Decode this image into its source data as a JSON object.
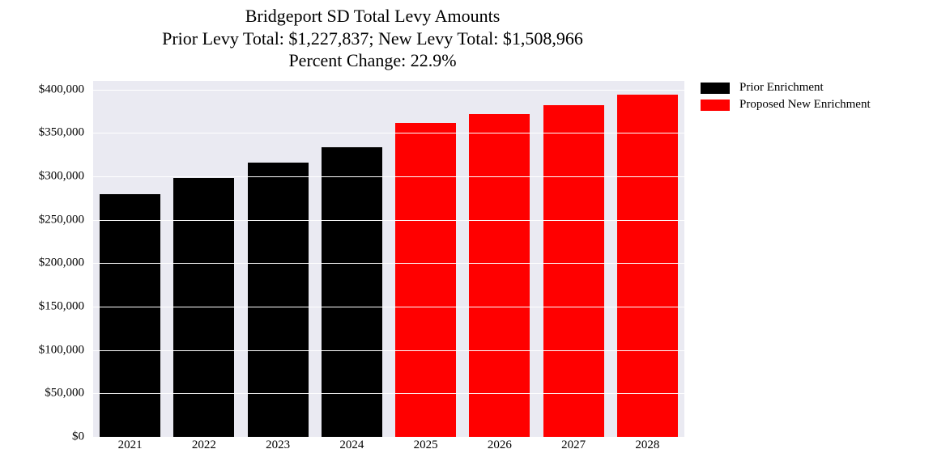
{
  "chart": {
    "type": "bar",
    "title_line1": "Bridgeport SD Total Levy Amounts",
    "title_line2": "Prior Levy Total:  $1,227,837; New Levy Total: $1,508,966",
    "title_line3": "Percent Change: 22.9%",
    "title_fontsize": 22,
    "title_color": "#000000",
    "background_color": "#ffffff",
    "plot_background_color": "#eaeaf2",
    "grid_color": "#ffffff",
    "categories": [
      "2021",
      "2022",
      "2023",
      "2024",
      "2025",
      "2026",
      "2027",
      "2028"
    ],
    "values": [
      280000,
      298000,
      316000,
      334000,
      362000,
      372000,
      382000,
      394000
    ],
    "bar_colors": [
      "#000000",
      "#000000",
      "#000000",
      "#000000",
      "#ff0000",
      "#ff0000",
      "#ff0000",
      "#ff0000"
    ],
    "ylim": [
      0,
      410000
    ],
    "ytick_step": 50000,
    "ytick_labels": [
      "$0",
      "$50,000",
      "$100,000",
      "$150,000",
      "$200,000",
      "$250,000",
      "$300,000",
      "$350,000",
      "$400,000"
    ],
    "axis_tick_fontsize": 15,
    "bar_width": 0.82,
    "legend": {
      "items": [
        {
          "label": "Prior Enrichment",
          "color": "#000000"
        },
        {
          "label": "Proposed New Enrichment",
          "color": "#ff0000"
        }
      ],
      "fontsize": 15
    }
  }
}
